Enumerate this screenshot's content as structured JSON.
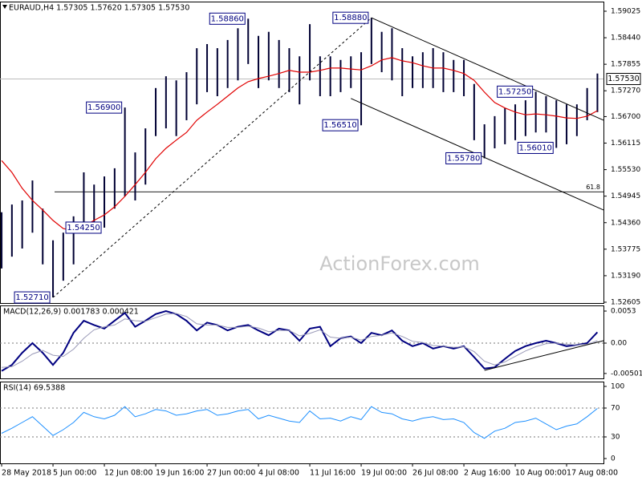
{
  "chart_data": [
    {
      "type": "ohlc",
      "title": "EURAUD,H4 1.57305 1.57620 1.57305 1.57530",
      "bar_color": "#000033",
      "ma_color": "#e00000",
      "xlim": [
        -0.16,
        58.59
      ],
      "ylim": [
        1.52587,
        1.59237
      ],
      "yticks": [
        1.59025,
        {
          "value": 1.5844,
          "label": "1.58440"
        },
        1.57855,
        {
          "value": 1.5727,
          "label": "1.57270"
        },
        {
          "value": 1.567,
          "label": "1.56700"
        },
        1.56115,
        {
          "value": 1.5553,
          "label": "1.55530"
        },
        1.54945,
        {
          "value": 1.5436,
          "label": "1.54360"
        },
        1.53775,
        {
          "value": 1.5319,
          "label": "1.53190"
        },
        1.52605
      ],
      "high": [
        1.5459,
        1.5476,
        1.5485,
        1.5529,
        1.5467,
        1.5397,
        1.5414,
        1.545,
        1.5547,
        1.552,
        1.5538,
        1.5556,
        1.569,
        1.5591,
        1.5644,
        1.5733,
        1.5759,
        1.575,
        1.5768,
        1.5821,
        1.583,
        1.5821,
        1.5839,
        1.5865,
        1.5886,
        1.5848,
        1.5857,
        1.5839,
        1.5821,
        1.5803,
        1.5874,
        1.5803,
        1.5803,
        1.5795,
        1.5803,
        1.5812,
        1.5888,
        1.5857,
        1.5865,
        1.5821,
        1.5803,
        1.5812,
        1.5821,
        1.5812,
        1.5795,
        1.5795,
        1.5742,
        1.5653,
        1.5671,
        1.5689,
        1.5697,
        1.5706,
        1.5725,
        1.5715,
        1.5706,
        1.5697,
        1.5697,
        1.5733,
        1.5765
      ],
      "low": [
        1.5335,
        1.5361,
        1.5379,
        1.5414,
        1.5344,
        1.5271,
        1.5308,
        1.5344,
        1.5432,
        1.5432,
        1.5425,
        1.5467,
        1.5494,
        1.5485,
        1.552,
        1.5627,
        1.5644,
        1.5627,
        1.5662,
        1.5697,
        1.5724,
        1.5715,
        1.5733,
        1.575,
        1.5786,
        1.5733,
        1.575,
        1.5733,
        1.5724,
        1.5697,
        1.575,
        1.5715,
        1.5715,
        1.5724,
        1.5733,
        1.5651,
        1.5786,
        1.5768,
        1.575,
        1.5715,
        1.5733,
        1.5733,
        1.5733,
        1.5724,
        1.5724,
        1.5715,
        1.5618,
        1.5578,
        1.56,
        1.5609,
        1.5618,
        1.5627,
        1.5635,
        1.5635,
        1.5601,
        1.5609,
        1.5627,
        1.5662,
        1.568
      ],
      "ma_values": [
        1.5573,
        1.5547,
        1.5512,
        1.5485,
        1.5464,
        1.5441,
        1.5423,
        1.5418,
        1.5428,
        1.5441,
        1.5453,
        1.5471,
        1.5494,
        1.552,
        1.5547,
        1.5577,
        1.56,
        1.5618,
        1.5635,
        1.5662,
        1.568,
        1.5697,
        1.5715,
        1.5733,
        1.5747,
        1.5754,
        1.5759,
        1.5765,
        1.5772,
        1.5768,
        1.5768,
        1.5772,
        1.5777,
        1.5777,
        1.5775,
        1.5773,
        1.5782,
        1.5795,
        1.58,
        1.5793,
        1.5789,
        1.5782,
        1.5777,
        1.5777,
        1.5772,
        1.5765,
        1.575,
        1.5724,
        1.5701,
        1.5689,
        1.568,
        1.5674,
        1.5676,
        1.5674,
        1.5671,
        1.5667,
        1.5666,
        1.5671,
        1.5683
      ],
      "annotations": [
        {
          "x": 24,
          "value": 1.5886,
          "label": "1.58860"
        },
        {
          "x": 36,
          "value": 1.5888,
          "label": "1.58880"
        },
        {
          "x": 12,
          "value": 1.569,
          "label": "1.56900"
        },
        {
          "x": 35,
          "value": 1.5651,
          "label": "1.56510"
        },
        {
          "x": 52,
          "value": 1.5725,
          "label": "1.57250"
        },
        {
          "x": 47,
          "value": 1.5578,
          "label": "1.55780"
        },
        {
          "x": 54,
          "value": 1.5601,
          "label": "1.56010"
        },
        {
          "x": 10,
          "value": 1.5425,
          "label": "1.54250"
        },
        {
          "x": 5,
          "value": 1.5271,
          "label": "1.52710"
        }
      ],
      "trendlines": [
        {
          "x": [
            5,
            36
          ],
          "y": [
            1.5271,
            1.5888
          ],
          "dashed": true
        },
        {
          "x": [
            36,
            58.59
          ],
          "y": [
            1.5888,
            1.5662
          ],
          "dashed": false
        },
        {
          "x": [
            34,
            58.59
          ],
          "y": [
            1.571,
            1.5464
          ],
          "dashed": false
        }
      ],
      "last_price": {
        "value": 1.5753,
        "label": "1.57530"
      },
      "level": {
        "value": 1.5504,
        "label": "61.8"
      },
      "watermark": "ActionForex.com"
    },
    {
      "type": "line",
      "title": "MACD(12,26,9) 0.001783 0.000421",
      "xlim": [
        -0.16,
        58.59
      ],
      "ylim": [
        -0.00583,
        0.00623
      ],
      "yticks": [
        0.0053,
        {
          "value": 0,
          "label": "0.00"
        },
        -0.005018
      ],
      "levels": [
        0
      ],
      "series": [
        {
          "color": "#000080",
          "width": 2,
          "values": [
            -0.0046,
            -0.0036,
            -0.0016,
            0.0,
            -0.0016,
            -0.0036,
            -0.0016,
            0.0017,
            0.0037,
            0.003,
            0.0024,
            0.0037,
            0.005,
            0.0027,
            0.0037,
            0.0048,
            0.0053,
            0.0048,
            0.0037,
            0.0021,
            0.0034,
            0.003,
            0.0021,
            0.0027,
            0.003,
            0.0021,
            0.0013,
            0.0024,
            0.0021,
            0.0004,
            0.0024,
            0.0027,
            -0.0005,
            0.0008,
            0.0011,
            0.0,
            0.0017,
            0.0013,
            0.0021,
            0.0004,
            -0.0005,
            0.0,
            -0.0009,
            -0.0005,
            -0.0009,
            -0.0005,
            -0.0023,
            -0.0042,
            -0.004,
            -0.0026,
            -0.0013,
            -0.0005,
            0.0,
            0.0004,
            0.0,
            -0.0005,
            -0.0003,
            0.0,
            0.0018
          ]
        },
        {
          "color": "#9a9ab8",
          "width": 1,
          "values": [
            -0.004,
            -0.0039,
            -0.003,
            -0.0018,
            -0.0012,
            -0.002,
            -0.0022,
            -0.001,
            0.0008,
            0.0022,
            0.0027,
            0.003,
            0.004,
            0.0037,
            0.0036,
            0.0042,
            0.0048,
            0.0049,
            0.0044,
            0.0032,
            0.003,
            0.003,
            0.0026,
            0.0026,
            0.0028,
            0.0025,
            0.0019,
            0.0021,
            0.0021,
            0.0012,
            0.0016,
            0.0022,
            0.001,
            0.0008,
            0.001,
            0.0005,
            0.0011,
            0.0013,
            0.0017,
            0.0011,
            0.0003,
            0.0001,
            -0.0004,
            -0.0005,
            -0.0007,
            -0.0006,
            -0.0014,
            -0.003,
            -0.0036,
            -0.0031,
            -0.0022,
            -0.0013,
            -0.0006,
            -0.0001,
            0.0,
            -0.0002,
            -0.0003,
            -0.0002,
            0.0004
          ]
        }
      ],
      "trendlines": [
        {
          "x": [
            47,
            58.59
          ],
          "y": [
            -0.0045,
            0.0004
          ],
          "dashed": false
        }
      ]
    },
    {
      "type": "line",
      "title": "RSI(14) 69.5388",
      "xlim": [
        -0.16,
        58.59
      ],
      "ylim": [
        -6.67,
        106.67
      ],
      "yticks": [
        100,
        70,
        30,
        0
      ],
      "levels": [
        70,
        30
      ],
      "series": [
        {
          "color": "#1e90ff",
          "width": 1,
          "values": [
            35,
            42,
            50,
            58,
            45,
            32,
            40,
            50,
            64,
            58,
            55,
            60,
            72,
            58,
            62,
            68,
            66,
            60,
            62,
            66,
            68,
            60,
            62,
            66,
            68,
            55,
            60,
            56,
            52,
            50,
            66,
            55,
            56,
            52,
            58,
            54,
            72,
            64,
            62,
            55,
            52,
            56,
            58,
            54,
            55,
            50,
            36,
            28,
            38,
            42,
            50,
            52,
            56,
            48,
            40,
            45,
            48,
            58,
            69.5
          ]
        }
      ],
      "xticks": [
        {
          "value": 0,
          "label": "28 May 2018"
        },
        {
          "value": 5,
          "label": "5 Jun 00:00"
        },
        {
          "value": 10,
          "label": "12 Jun 08:00"
        },
        {
          "value": 15,
          "label": "19 Jun 16:00"
        },
        {
          "value": 20,
          "label": "27 Jun 00:00"
        },
        {
          "value": 25,
          "label": "4 Jul 08:00"
        },
        {
          "value": 30,
          "label": "11 Jul 16:00"
        },
        {
          "value": 35,
          "label": "19 Jul 00:00"
        },
        {
          "value": 40,
          "label": "26 Jul 08:00"
        },
        {
          "value": 45,
          "label": "2 Aug 16:00"
        },
        {
          "value": 50,
          "label": "10 Aug 00:00"
        },
        {
          "value": 55,
          "label": "17 Aug 08:00"
        }
      ]
    }
  ]
}
